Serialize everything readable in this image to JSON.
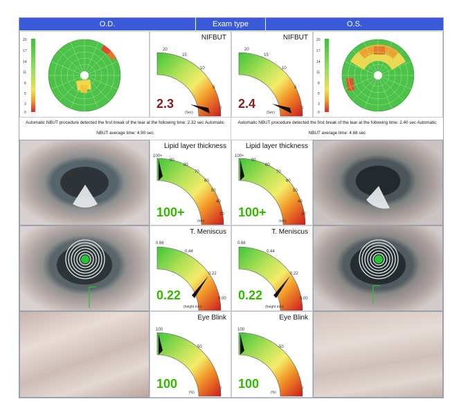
{
  "header": {
    "od": "O.D.",
    "exam_type": "Exam type",
    "os": "O.S."
  },
  "colors": {
    "header_bg": "#3a5ad9",
    "green_val": "#33b800",
    "red_val": "#8a1c1c"
  },
  "scale_ticks": [
    "20",
    "17",
    "14",
    "11",
    "8",
    "5",
    "3",
    "0"
  ],
  "nifbut": {
    "title": "NIFBUT",
    "ticks": [
      "20",
      "15",
      "10",
      "5",
      "0"
    ],
    "unit": "(Sec)",
    "od_value": "2.3",
    "os_value": "2.4"
  },
  "nbut_text": {
    "od": "Automatic NBUT procedure detected the first break of the tear at the following time: 2.32 sec Automatic NBUT average time: 4.90 sec",
    "os": "Automatic NBUT procedure detected the first break of the tear at the following time: 2.40 sec Automatic NBUT average time: 4.68 sec"
  },
  "lipid": {
    "title": "Lipid layer thickness",
    "ticks": [
      "100+",
      "90",
      "80",
      "70",
      "60",
      "50",
      "40",
      "30"
    ],
    "unit": "(nm)",
    "od_value": "100+",
    "os_value": "100+"
  },
  "meniscus": {
    "title": "T. Meniscus",
    "ticks": [
      "0.66",
      "0.44",
      "0.22",
      "0.00"
    ],
    "unit": "(height mm)",
    "od_value": "0.22",
    "os_value": "0.22"
  },
  "blink": {
    "title": "Eye Blink",
    "ticks": [
      "100",
      "50",
      "0"
    ],
    "unit": "(%)",
    "od_value": "100",
    "os_value": "100"
  }
}
